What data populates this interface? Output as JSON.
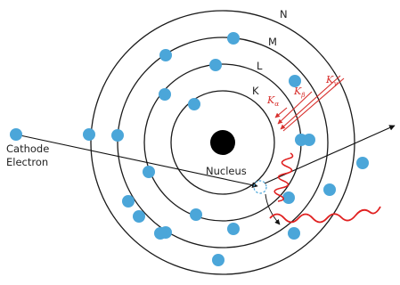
{
  "labels": {
    "shell_k": "K",
    "shell_l": "L",
    "shell_m": "M",
    "shell_n": "N",
    "nucleus": "Nucleus",
    "cathode_line1": "Cathode",
    "cathode_line2": "Electron"
  },
  "transitions": [
    {
      "symbol": "K",
      "subscript": "α"
    },
    {
      "symbol": "K",
      "subscript": "β"
    },
    {
      "symbol": "K",
      "subscript": "γ"
    }
  ],
  "colors": {
    "electron": "#4ba6d9",
    "nucleus": "#000000",
    "shell": "#1a1a1a",
    "transition": "#d8312e",
    "photon_wave": "#e02020"
  }
}
